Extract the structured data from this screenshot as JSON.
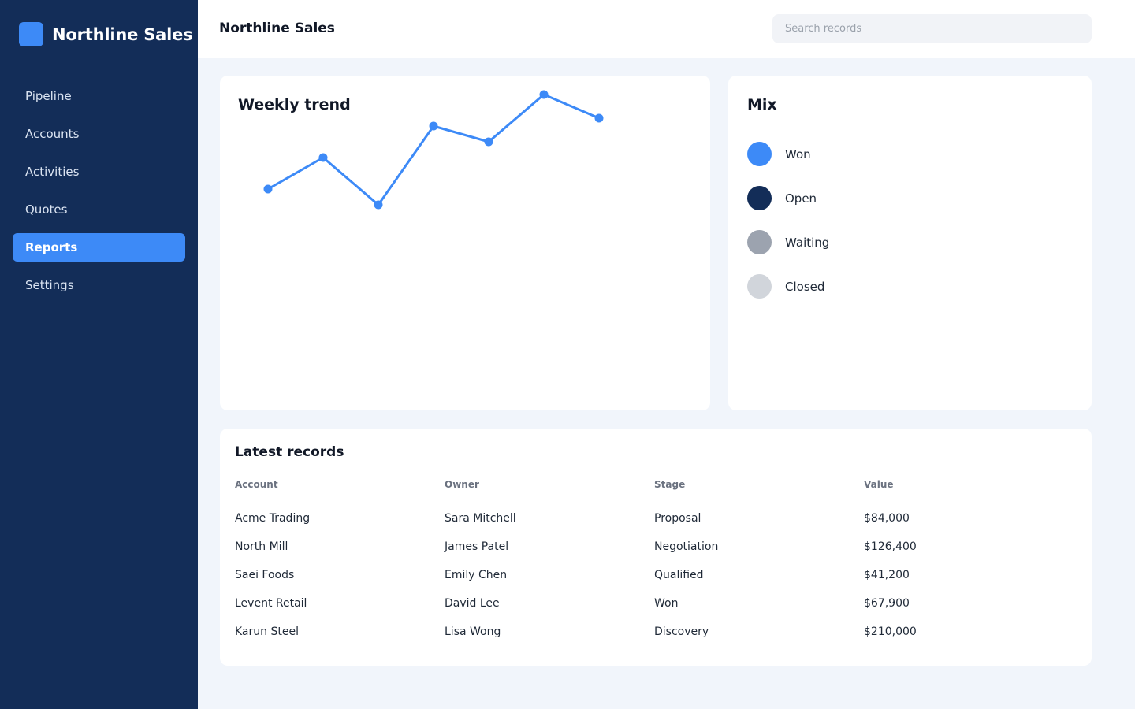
{
  "app": {
    "name": "Northline Sales"
  },
  "sidebar": {
    "items": [
      {
        "label": "Pipeline",
        "active": false
      },
      {
        "label": "Accounts",
        "active": false
      },
      {
        "label": "Activities",
        "active": false
      },
      {
        "label": "Quotes",
        "active": false
      },
      {
        "label": "Reports",
        "active": true
      },
      {
        "label": "Settings",
        "active": false
      }
    ]
  },
  "header": {
    "title": "Northline Sales",
    "search": {
      "placeholder": "Search records",
      "value": ""
    }
  },
  "trend": {
    "title": "Weekly trend",
    "color": "#3d8af7",
    "values": [
      4,
      6,
      3,
      8,
      7,
      10,
      8.5
    ]
  },
  "mix": {
    "title": "Mix",
    "items": [
      {
        "label": "Won",
        "color": "#3d8af7"
      },
      {
        "label": "Open",
        "color": "#132d58"
      },
      {
        "label": "Waiting",
        "color": "#9ca3af"
      },
      {
        "label": "Closed",
        "color": "#d1d5db"
      }
    ]
  },
  "records": {
    "title": "Latest records",
    "columns": [
      "Account",
      "Owner",
      "Stage",
      "Value"
    ],
    "rows": [
      [
        "Acme Trading",
        "Sara Mitchell",
        "Proposal",
        "$84,000"
      ],
      [
        "North Mill",
        "James Patel",
        "Negotiation",
        "$126,400"
      ],
      [
        "Saei Foods",
        "Emily Chen",
        "Qualified",
        "$41,200"
      ],
      [
        "Levent Retail",
        "David Lee",
        "Won",
        "$67,900"
      ],
      [
        "Karun Steel",
        "Lisa Wong",
        "Discovery",
        "$210,000"
      ]
    ]
  },
  "colors": {
    "sidebar_bg": "#132d58",
    "accent": "#3d8af7",
    "page_bg": "#f1f5fb"
  }
}
